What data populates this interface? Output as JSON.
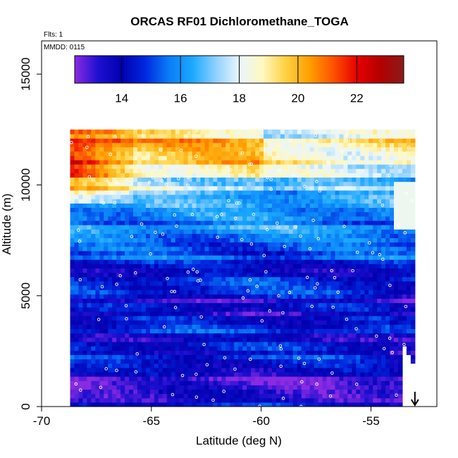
{
  "chart_data": {
    "type": "heatmap",
    "title": "ORCAS RF01 Dichloromethane_TOGA",
    "xlabel": "Latitude (deg N)",
    "ylabel": "Altitude (m)",
    "annotations": {
      "flights": "Flts: 1",
      "date": "MMDD: 0115"
    },
    "xlim": [
      -70,
      -52
    ],
    "ylim": [
      0,
      16500
    ],
    "x_ticks": [
      -70,
      -65,
      -60,
      -55
    ],
    "x_tick_labels": [
      "-70",
      "-65",
      "-60",
      "-55"
    ],
    "y_ticks": [
      0,
      5000,
      10000,
      15000
    ],
    "y_tick_labels": [
      "0",
      "5000",
      "10000",
      "15000"
    ],
    "colorbar": {
      "min": 12.4,
      "max": 23.6,
      "ticks": [
        14,
        16,
        18,
        20,
        22
      ],
      "tick_labels": [
        "14",
        "16",
        "18",
        "20",
        "22"
      ],
      "colors": [
        "#8a2be2",
        "#1e0fd0",
        "#0000b0",
        "#0028e0",
        "#0a7cf6",
        "#1aa8ff",
        "#8fd0ff",
        "#e8f6ff",
        "#fff8c0",
        "#ffd040",
        "#ff9e00",
        "#ff5200",
        "#e60000",
        "#b40000",
        "#8b1a1a"
      ]
    },
    "field": {
      "lat_range": [
        -68.7,
        -53.0
      ],
      "alt_range": [
        0,
        12500
      ],
      "profiles": [
        {
          "alt": 0,
          "value": 14.2
        },
        {
          "alt": 500,
          "value": 13.8
        },
        {
          "alt": 1000,
          "value": 13.5
        },
        {
          "alt": 1500,
          "value": 13.3
        },
        {
          "alt": 2000,
          "value": 14.0
        },
        {
          "alt": 2500,
          "value": 14.4
        },
        {
          "alt": 3000,
          "value": 13.9
        },
        {
          "alt": 3500,
          "value": 14.8
        },
        {
          "alt": 4000,
          "value": 14.2
        },
        {
          "alt": 4500,
          "value": 13.6
        },
        {
          "alt": 5000,
          "value": 14.0
        },
        {
          "alt": 5500,
          "value": 14.6
        },
        {
          "alt": 6000,
          "value": 14.3
        },
        {
          "alt": 6500,
          "value": 15.0
        },
        {
          "alt": 7000,
          "value": 15.4
        },
        {
          "alt": 7500,
          "value": 16.2
        },
        {
          "alt": 8000,
          "value": 16.0
        },
        {
          "alt": 8500,
          "value": 16.4
        },
        {
          "alt": 9000,
          "value": 16.6
        },
        {
          "alt": 9500,
          "value": 17.2
        },
        {
          "alt": 10000,
          "value": 17.8
        },
        {
          "alt": 10500,
          "value": 18.8
        },
        {
          "alt": 11000,
          "value": 19.6
        },
        {
          "alt": 11500,
          "value": 20.0
        },
        {
          "alt": 12000,
          "value": 19.6
        },
        {
          "alt": 12500,
          "value": 19.0
        }
      ]
    },
    "arrow_marker": {
      "lat": -53.0
    }
  }
}
